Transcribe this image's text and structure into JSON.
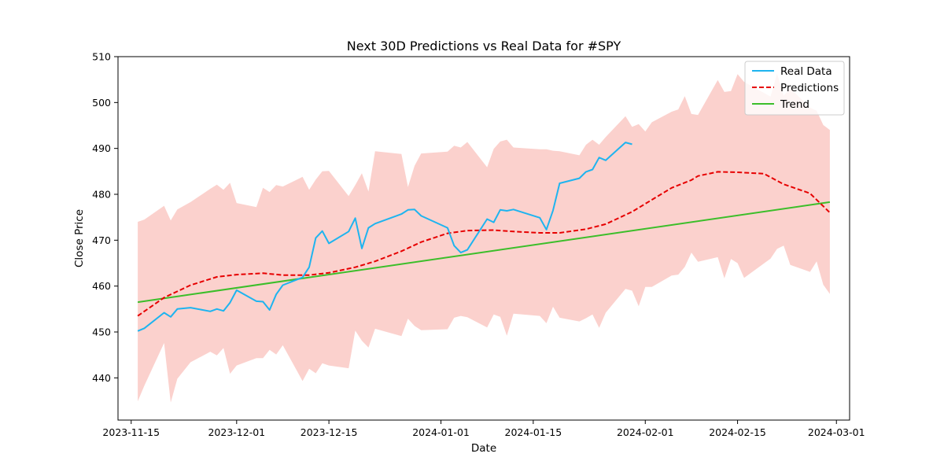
{
  "chart_data": {
    "type": "line",
    "title": "Next 30D Predictions vs Real Data for #SPY",
    "xlabel": "Date",
    "ylabel": "Close Price",
    "xlim": [
      "2023-11-13",
      "2024-03-03"
    ],
    "ylim": [
      430.8,
      510
    ],
    "y_ticks": [
      440,
      450,
      460,
      470,
      480,
      490,
      500,
      510
    ],
    "x_ticks": [
      "2023-11-15",
      "2023-12-01",
      "2023-12-15",
      "2024-01-01",
      "2024-01-15",
      "2024-02-01",
      "2024-02-15",
      "2024-03-01"
    ],
    "grid": false,
    "legend_position": "top-right",
    "colors": {
      "real": "#1eb4ef",
      "predictions": "#e60000",
      "trend": "#3cbe2a",
      "band": "#fbd1cd"
    },
    "series": [
      {
        "name": "Real Data",
        "style": "solid",
        "x": [
          "2023-11-16",
          "2023-11-17",
          "2023-11-20",
          "2023-11-21",
          "2023-11-22",
          "2023-11-24",
          "2023-11-27",
          "2023-11-28",
          "2023-11-29",
          "2023-11-30",
          "2023-12-01",
          "2023-12-04",
          "2023-12-05",
          "2023-12-06",
          "2023-12-07",
          "2023-12-08",
          "2023-12-11",
          "2023-12-12",
          "2023-12-13",
          "2023-12-14",
          "2023-12-15",
          "2023-12-18",
          "2023-12-19",
          "2023-12-20",
          "2023-12-21",
          "2023-12-22",
          "2023-12-26",
          "2023-12-27",
          "2023-12-28",
          "2023-12-29",
          "2024-01-02",
          "2024-01-03",
          "2024-01-04",
          "2024-01-05",
          "2024-01-08",
          "2024-01-09",
          "2024-01-10",
          "2024-01-11",
          "2024-01-12",
          "2024-01-16",
          "2024-01-17",
          "2024-01-18",
          "2024-01-19",
          "2024-01-22",
          "2024-01-23",
          "2024-01-24",
          "2024-01-25",
          "2024-01-26",
          "2024-01-29",
          "2024-01-30"
        ],
        "values": [
          450.2,
          450.8,
          454.2,
          453.3,
          455.0,
          455.3,
          454.5,
          455.0,
          454.6,
          456.4,
          459.1,
          456.7,
          456.6,
          454.8,
          458.2,
          460.2,
          461.9,
          464.1,
          470.5,
          472.0,
          469.3,
          471.9,
          474.8,
          468.2,
          472.7,
          473.6,
          475.7,
          476.6,
          476.7,
          475.3,
          472.7,
          468.8,
          467.3,
          467.9,
          474.6,
          473.9,
          476.6,
          476.4,
          476.7,
          474.9,
          472.3,
          476.5,
          482.4,
          483.5,
          484.9,
          485.4,
          488.0,
          487.4,
          491.3,
          490.9
        ]
      },
      {
        "name": "Predictions",
        "style": "dashed",
        "x": [
          "2023-11-16",
          "2023-11-20",
          "2023-11-24",
          "2023-11-28",
          "2023-12-01",
          "2023-12-05",
          "2023-12-08",
          "2023-12-12",
          "2023-12-15",
          "2023-12-19",
          "2023-12-22",
          "2023-12-26",
          "2023-12-29",
          "2024-01-02",
          "2024-01-05",
          "2024-01-09",
          "2024-01-12",
          "2024-01-16",
          "2024-01-19",
          "2024-01-23",
          "2024-01-26",
          "2024-01-30",
          "2024-02-02",
          "2024-02-05",
          "2024-02-08",
          "2024-02-09",
          "2024-02-12",
          "2024-02-15",
          "2024-02-19",
          "2024-02-22",
          "2024-02-26",
          "2024-02-29"
        ],
        "values": [
          453.5,
          457.5,
          460.2,
          462.0,
          462.5,
          462.8,
          462.4,
          462.4,
          462.9,
          464.1,
          465.4,
          467.6,
          469.6,
          471.5,
          472.1,
          472.2,
          471.9,
          471.6,
          471.6,
          472.4,
          473.5,
          476.2,
          478.8,
          481.4,
          483.1,
          484.0,
          484.9,
          484.8,
          484.5,
          482.2,
          480.2,
          476.0
        ]
      },
      {
        "name": "Trend",
        "style": "solid",
        "x": [
          "2023-11-16",
          "2024-02-29"
        ],
        "values": [
          456.5,
          478.3
        ]
      }
    ],
    "band": {
      "x": [
        "2023-11-16",
        "2023-11-17",
        "2023-11-20",
        "2023-11-21",
        "2023-11-22",
        "2023-11-24",
        "2023-11-27",
        "2023-11-28",
        "2023-11-29",
        "2023-11-30",
        "2023-12-01",
        "2023-12-04",
        "2023-12-05",
        "2023-12-06",
        "2023-12-07",
        "2023-12-08",
        "2023-12-11",
        "2023-12-12",
        "2023-12-13",
        "2023-12-14",
        "2023-12-15",
        "2023-12-18",
        "2023-12-19",
        "2023-12-20",
        "2023-12-21",
        "2023-12-22",
        "2023-12-26",
        "2023-12-27",
        "2023-12-28",
        "2023-12-29",
        "2024-01-02",
        "2024-01-03",
        "2024-01-04",
        "2024-01-05",
        "2024-01-08",
        "2024-01-09",
        "2024-01-10",
        "2024-01-11",
        "2024-01-12",
        "2024-01-16",
        "2024-01-17",
        "2024-01-18",
        "2024-01-19",
        "2024-01-22",
        "2024-01-23",
        "2024-01-24",
        "2024-01-25",
        "2024-01-26",
        "2024-01-29",
        "2024-01-30",
        "2024-01-31",
        "2024-02-01",
        "2024-02-02",
        "2024-02-05",
        "2024-02-06",
        "2024-02-07",
        "2024-02-08",
        "2024-02-09",
        "2024-02-12",
        "2024-02-13",
        "2024-02-14",
        "2024-02-15",
        "2024-02-16",
        "2024-02-20",
        "2024-02-21",
        "2024-02-22",
        "2024-02-23",
        "2024-02-26",
        "2024-02-27",
        "2024-02-28",
        "2024-02-29"
      ],
      "upper": [
        474.0,
        474.5,
        477.5,
        474.3,
        476.7,
        478.3,
        481.2,
        482.1,
        481.0,
        482.5,
        478.1,
        477.2,
        481.4,
        480.5,
        482.0,
        481.7,
        483.8,
        481.0,
        483.2,
        485.0,
        485.1,
        479.6,
        482.0,
        484.6,
        480.6,
        489.4,
        488.8,
        481.6,
        486.2,
        488.9,
        489.3,
        490.6,
        490.2,
        491.4,
        485.9,
        489.9,
        491.5,
        491.9,
        490.2,
        489.8,
        489.8,
        489.5,
        489.4,
        488.5,
        490.8,
        491.9,
        490.8,
        492.5,
        497.0,
        494.7,
        495.3,
        493.7,
        495.7,
        498.0,
        498.5,
        501.4,
        497.5,
        497.3,
        504.9,
        502.3,
        502.5,
        506.2,
        504.5,
        501.3,
        506.3,
        501.5,
        503.1,
        498.9,
        498.2,
        495.1,
        494.0
      ],
      "lower": [
        434.9,
        438.3,
        447.6,
        434.6,
        439.8,
        443.4,
        445.7,
        444.9,
        446.5,
        440.9,
        442.7,
        444.3,
        444.3,
        446.1,
        445.1,
        447.1,
        439.3,
        442.0,
        441.0,
        443.2,
        442.7,
        442.1,
        450.3,
        448.1,
        446.6,
        450.7,
        449.1,
        452.9,
        451.3,
        450.4,
        450.6,
        453.1,
        453.5,
        453.2,
        451.0,
        453.8,
        453.3,
        449.2,
        454.0,
        453.5,
        451.9,
        455.5,
        453.1,
        452.3,
        453.0,
        453.8,
        450.9,
        454.2,
        459.4,
        459.0,
        455.6,
        459.8,
        459.8,
        462.3,
        462.5,
        464.2,
        467.3,
        465.3,
        466.3,
        461.7,
        465.9,
        465.0,
        461.8,
        466.0,
        468.1,
        468.8,
        464.6,
        463.1,
        465.4,
        460.3,
        458.3
      ]
    }
  }
}
